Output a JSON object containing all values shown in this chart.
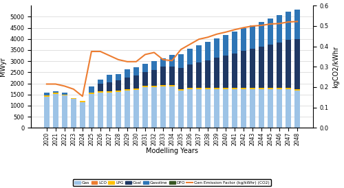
{
  "years": [
    2020,
    2021,
    2022,
    2023,
    2024,
    2025,
    2026,
    2027,
    2028,
    2029,
    2030,
    2031,
    2032,
    2033,
    2034,
    2035,
    2036,
    2037,
    2038,
    2039,
    2040,
    2041,
    2042,
    2043,
    2044,
    2045,
    2046,
    2047,
    2048
  ],
  "gas": [
    1400,
    1520,
    1450,
    1300,
    1150,
    1520,
    1580,
    1580,
    1620,
    1680,
    1720,
    1820,
    1830,
    1870,
    1870,
    1680,
    1730,
    1730,
    1730,
    1730,
    1730,
    1730,
    1730,
    1730,
    1730,
    1730,
    1730,
    1730,
    1680
  ],
  "lco": [
    0,
    0,
    0,
    0,
    0,
    0,
    0,
    0,
    0,
    0,
    0,
    0,
    0,
    0,
    0,
    0,
    0,
    0,
    0,
    0,
    0,
    0,
    0,
    0,
    0,
    0,
    0,
    0,
    0
  ],
  "lpg": [
    50,
    55,
    50,
    50,
    50,
    50,
    55,
    60,
    60,
    60,
    60,
    60,
    60,
    60,
    60,
    60,
    60,
    60,
    60,
    60,
    60,
    65,
    65,
    65,
    65,
    65,
    60,
    60,
    60
  ],
  "coal": [
    0,
    0,
    0,
    0,
    0,
    0,
    350,
    420,
    470,
    530,
    570,
    620,
    720,
    830,
    840,
    950,
    1060,
    1160,
    1260,
    1360,
    1460,
    1560,
    1660,
    1760,
    1860,
    1960,
    2060,
    2160,
    2260
  ],
  "gasoline": [
    120,
    60,
    100,
    0,
    0,
    300,
    190,
    320,
    270,
    370,
    370,
    390,
    390,
    370,
    520,
    620,
    720,
    770,
    820,
    870,
    920,
    970,
    1020,
    1070,
    1120,
    1170,
    1220,
    1270,
    1320
  ],
  "dfo": [
    0,
    0,
    0,
    0,
    0,
    0,
    0,
    0,
    0,
    0,
    0,
    0,
    0,
    0,
    0,
    0,
    0,
    0,
    0,
    0,
    0,
    0,
    0,
    0,
    0,
    0,
    0,
    0,
    0
  ],
  "emission_factor": [
    0.215,
    0.215,
    0.205,
    0.19,
    0.155,
    0.375,
    0.375,
    0.355,
    0.335,
    0.325,
    0.325,
    0.36,
    0.37,
    0.335,
    0.33,
    0.385,
    0.41,
    0.435,
    0.445,
    0.46,
    0.47,
    0.482,
    0.492,
    0.5,
    0.503,
    0.51,
    0.512,
    0.52,
    0.522
  ],
  "bar_width": 0.65,
  "ylim_left": [
    0,
    5500
  ],
  "ylim_right": [
    0,
    0.6
  ],
  "yticks_left": [
    0,
    500,
    1000,
    1500,
    2000,
    2500,
    3000,
    3500,
    4000,
    4500,
    5000
  ],
  "yticks_right": [
    0,
    0.1,
    0.2,
    0.3,
    0.4,
    0.5,
    0.6
  ],
  "xlabel": "Modelling Years",
  "ylabel_left": "MWyr",
  "ylabel_right": "kgCO2/kWhr",
  "color_gas": "#9dc3e6",
  "color_lco": "#ed7d31",
  "color_lpg": "#ffc000",
  "color_coal": "#1f3864",
  "color_gasoline": "#2e75b6",
  "color_dfo": "#375623",
  "color_emission": "#ed7d31",
  "legend_labels": [
    "Gas",
    "LCO",
    "LPG",
    "Coal",
    "Gasoline",
    "DFO",
    "Gen Emission Factor (kg/kWhr) (CO2)"
  ]
}
